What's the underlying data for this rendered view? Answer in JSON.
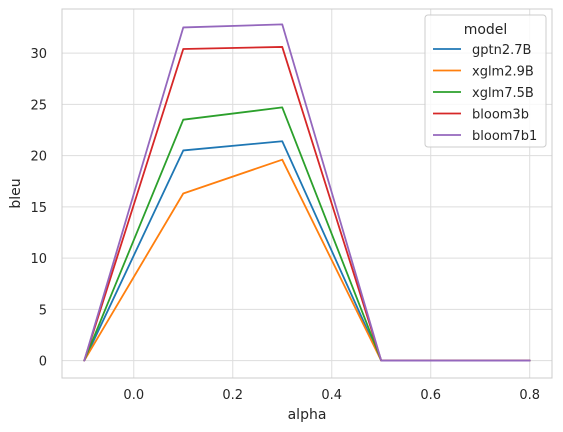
{
  "chart_data": {
    "type": "line",
    "xlabel": "alpha",
    "ylabel": "bleu",
    "xlim": [
      -0.145,
      0.845
    ],
    "ylim": [
      -1.7,
      34.3
    ],
    "xticks": [
      0.0,
      0.2,
      0.4,
      0.6,
      0.8
    ],
    "xtick_labels": [
      "0.0",
      "0.2",
      "0.4",
      "0.6",
      "0.8"
    ],
    "yticks": [
      0,
      5,
      10,
      15,
      20,
      25,
      30
    ],
    "ytick_labels": [
      "0",
      "5",
      "10",
      "15",
      "20",
      "25",
      "30"
    ],
    "grid": true,
    "legend": {
      "title": "model",
      "placement": "top-right"
    },
    "x": [
      -0.1,
      0.1,
      0.3,
      0.5,
      0.8
    ],
    "series": [
      {
        "name": "gptn2.7B",
        "color": "#1f77b4",
        "values": [
          0,
          20.5,
          21.4,
          0,
          0
        ]
      },
      {
        "name": "xglm2.9B",
        "color": "#ff7f0e",
        "values": [
          0,
          16.3,
          19.6,
          0,
          0
        ]
      },
      {
        "name": "xglm7.5B",
        "color": "#2ca02c",
        "values": [
          0,
          23.5,
          24.7,
          0,
          0
        ]
      },
      {
        "name": "bloom3b",
        "color": "#d62728",
        "values": [
          0,
          30.4,
          30.6,
          0,
          0
        ]
      },
      {
        "name": "bloom7b1",
        "color": "#9467bd",
        "values": [
          0,
          32.5,
          32.8,
          0,
          0
        ]
      }
    ]
  }
}
